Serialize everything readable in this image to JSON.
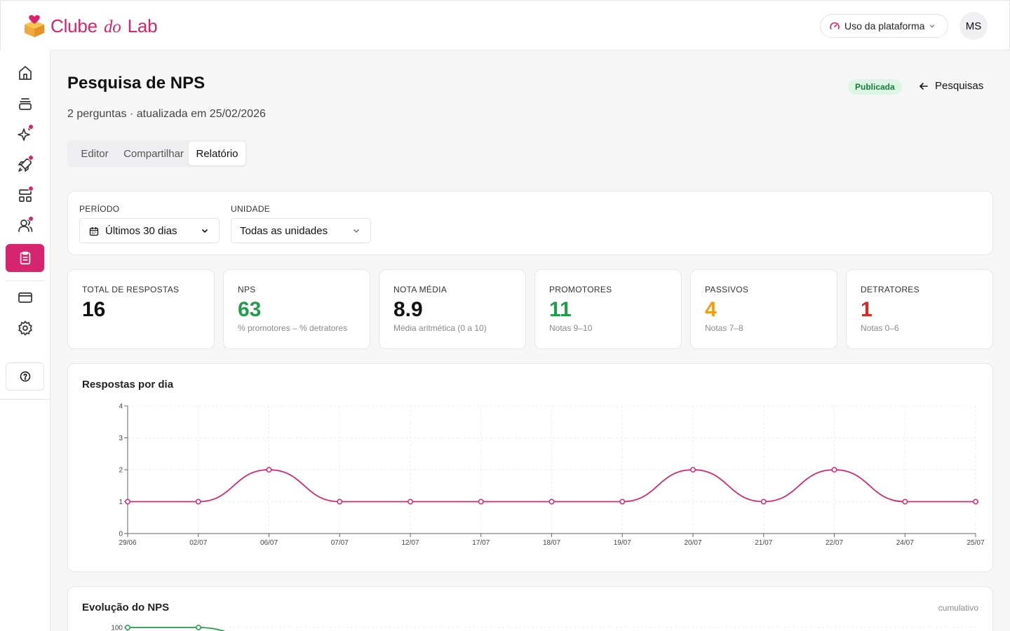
{
  "app": {
    "brand_left": "Clube",
    "brand_mid": "do",
    "brand_right": "Lab",
    "usage_label": "Uso da plataforma",
    "avatar_initials": "MS",
    "accent": "#d6246e"
  },
  "sidebar": {
    "items": [
      {
        "icon": "home-icon",
        "badge": false
      },
      {
        "icon": "layers-icon",
        "badge": false
      },
      {
        "icon": "sparkles-icon",
        "badge": true
      },
      {
        "icon": "rocket-icon",
        "badge": true
      },
      {
        "icon": "layout-icon",
        "badge": true
      },
      {
        "icon": "users-icon",
        "badge": true
      },
      {
        "icon": "clipboard-icon",
        "badge": false,
        "active": true
      },
      {
        "icon": "credit-card-icon",
        "badge": false
      },
      {
        "icon": "settings-icon",
        "badge": false
      }
    ],
    "help_icon": "help-icon"
  },
  "header": {
    "title": "Pesquisa de NPS",
    "subtitle": "2 perguntas · atualizada em 25/02/2026",
    "status_badge": "Publicada",
    "back_label": "Pesquisas"
  },
  "tabs": [
    {
      "label": "Editor",
      "active": false
    },
    {
      "label": "Compartilhar",
      "active": false
    },
    {
      "label": "Relatório",
      "active": true
    }
  ],
  "filters": {
    "period_label": "PERÍODO",
    "period_value": "Últimos 30 dias",
    "unit_label": "UNIDADE",
    "unit_value": "Todas as unidades"
  },
  "stats": [
    {
      "label": "TOTAL DE RESPOSTAS",
      "value": "16",
      "hint": "",
      "color": "#111111"
    },
    {
      "label": "NPS",
      "value": "63",
      "hint": "% promotores – % detratores",
      "color": "#1f9d4a"
    },
    {
      "label": "NOTA MÉDIA",
      "value": "8.9",
      "hint": "Média aritmética (0 a 10)",
      "color": "#111111"
    },
    {
      "label": "PROMOTORES",
      "value": "11",
      "hint": "Notas 9–10",
      "color": "#1f9d4a"
    },
    {
      "label": "PASSIVOS",
      "value": "4",
      "hint": "Notas 7–8",
      "color": "#f59e0b"
    },
    {
      "label": "DETRATORES",
      "value": "1",
      "hint": "Notas 0–6",
      "color": "#dc2626"
    }
  ],
  "chart_data": [
    {
      "type": "line",
      "title": "Respostas por dia",
      "categories": [
        "29/06",
        "02/07",
        "06/07",
        "07/07",
        "12/07",
        "17/07",
        "18/07",
        "19/07",
        "20/07",
        "21/07",
        "22/07",
        "24/07",
        "25/07"
      ],
      "series": [
        {
          "values": [
            1,
            1,
            2,
            1,
            1,
            1,
            1,
            1,
            2,
            1,
            2,
            1,
            1
          ],
          "color": "#d6246e"
        }
      ],
      "y_ticks": [
        "0",
        "1",
        "2",
        "3",
        "4"
      ],
      "ylim": [
        0,
        4
      ],
      "grid": true
    },
    {
      "type": "line",
      "title": "Evolução do NPS",
      "note": "cumulativo",
      "visible_y_tick": "100",
      "series": [
        {
          "values": [
            100,
            100
          ],
          "color": "#1f9d4a"
        }
      ]
    }
  ]
}
